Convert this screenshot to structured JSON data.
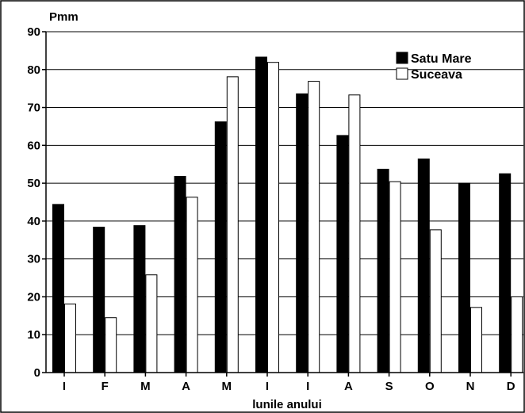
{
  "chart_data": {
    "type": "bar",
    "ylabel": "Pmm",
    "xlabel": "lunile anului",
    "categories": [
      "I",
      "F",
      "M",
      "A",
      "M",
      "I",
      "I",
      "A",
      "S",
      "O",
      "N",
      "D"
    ],
    "yticks": [
      0,
      10,
      20,
      30,
      40,
      50,
      60,
      70,
      80,
      90
    ],
    "ylim": [
      0,
      90
    ],
    "grid": true,
    "legend_position": "top-right",
    "series": [
      {
        "name": "Satu Mare",
        "color": "#000000",
        "values": [
          44.4,
          38.4,
          38.8,
          51.8,
          66.2,
          83.3,
          73.6,
          62.6,
          53.7,
          56.4,
          50.0,
          52.5
        ]
      },
      {
        "name": "Suceava",
        "color": "#ffffff",
        "values": [
          18.1,
          14.5,
          25.8,
          46.3,
          78.1,
          81.9,
          76.9,
          73.3,
          50.4,
          37.7,
          17.2,
          20.0
        ]
      }
    ]
  }
}
